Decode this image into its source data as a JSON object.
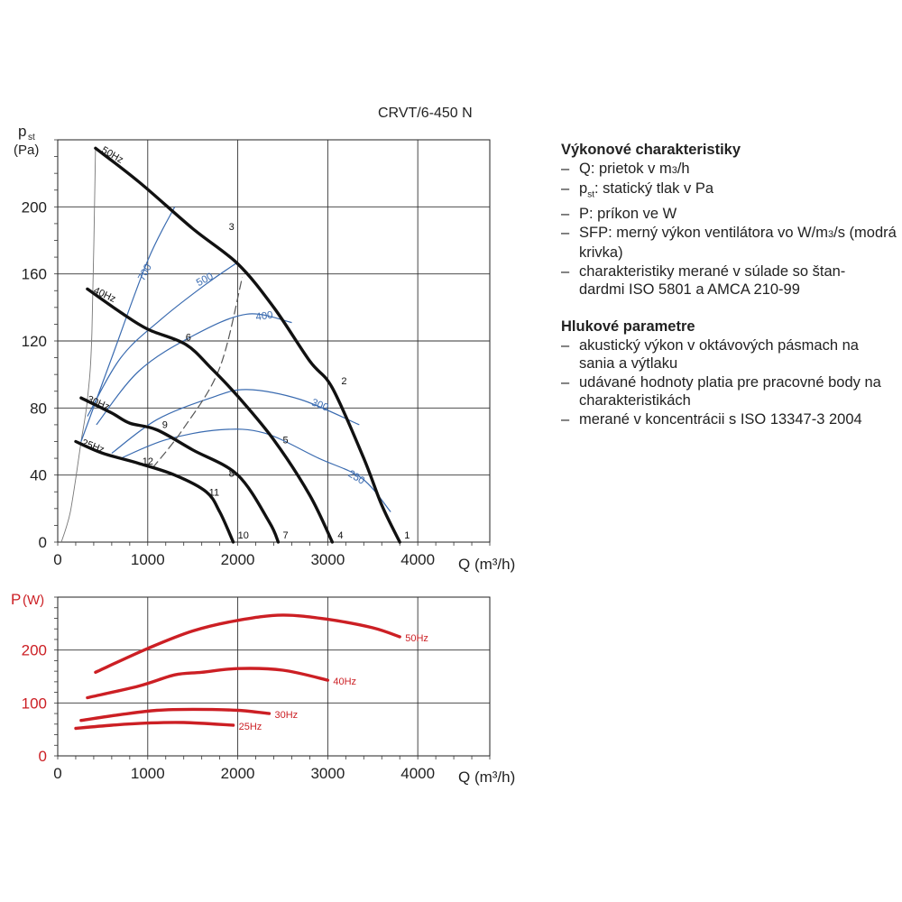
{
  "model": "CRVT/6-450 N",
  "notes": [
    {
      "heading": "Výkonové charakteristiky",
      "items": [
        "Q: prietok v m³/h",
        "pst: statický tlak v Pa",
        "P: príkon ve W",
        "SFP: merný výkon ventilátora vo W/m³/s (modrá krivka)",
        "charakteristiky merané v súlade so štandardmi ISO 5801 a AMCA 210-99"
      ]
    },
    {
      "heading": "Hlukové parametre",
      "items": [
        "akustický výkon v oktávových pásmach na sania a výtlaku",
        "udávané hodnoty platia pre pracovné body na charakteristikách",
        "merané v koncentrácii s ISO 13347-3 2004"
      ]
    }
  ],
  "chart_data": [
    {
      "type": "line",
      "xlabel": "Q (m³/h)",
      "ylabel_main": "p",
      "ylabel_sub": "st",
      "ylabel_unit": "(Pa)",
      "xlim": [
        0,
        4800
      ],
      "ylim": [
        0,
        240
      ],
      "xticks": [
        0,
        1000,
        2000,
        3000,
        4000
      ],
      "yticks": [
        0,
        40,
        80,
        120,
        160,
        200
      ],
      "grid": true,
      "series": [
        {
          "name": "50Hz",
          "color": "#111111",
          "points": [
            [
              420,
              235
            ],
            [
              900,
              215
            ],
            [
              1500,
              187
            ],
            [
              2000,
              166
            ],
            [
              2400,
              140
            ],
            [
              2800,
              108
            ],
            [
              3050,
              92
            ],
            [
              3400,
              50
            ],
            [
              3600,
              22
            ],
            [
              3800,
              0
            ]
          ]
        },
        {
          "name": "40Hz",
          "color": "#111111",
          "points": [
            [
              330,
              151
            ],
            [
              700,
              137
            ],
            [
              1000,
              127
            ],
            [
              1420,
              118
            ],
            [
              1700,
              104
            ],
            [
              2000,
              87
            ],
            [
              2400,
              61
            ],
            [
              2800,
              28
            ],
            [
              3050,
              0
            ]
          ]
        },
        {
          "name": "30Hz",
          "color": "#111111",
          "points": [
            [
              260,
              86
            ],
            [
              600,
              77
            ],
            [
              800,
              71
            ],
            [
              1100,
              67
            ],
            [
              1500,
              55
            ],
            [
              2000,
              40
            ],
            [
              2350,
              12
            ],
            [
              2450,
              0
            ]
          ]
        },
        {
          "name": "25Hz",
          "color": "#111111",
          "points": [
            [
              200,
              60
            ],
            [
              500,
              53
            ],
            [
              900,
              47
            ],
            [
              1300,
              40
            ],
            [
              1650,
              30
            ],
            [
              1800,
              18
            ],
            [
              1950,
              0
            ]
          ]
        }
      ],
      "sfp_curves": [
        {
          "name": "700",
          "color": "#3a6bb0",
          "points": [
            [
              260,
              60
            ],
            [
              600,
              110
            ],
            [
              1000,
              168
            ],
            [
              1300,
              200
            ]
          ]
        },
        {
          "name": "500",
          "color": "#3a6bb0",
          "points": [
            [
              330,
              75
            ],
            [
              700,
              110
            ],
            [
              1150,
              133
            ],
            [
              1650,
              154
            ],
            [
              2000,
              167
            ]
          ]
        },
        {
          "name": "400",
          "color": "#3a6bb0",
          "points": [
            [
              430,
              70
            ],
            [
              900,
              102
            ],
            [
              1500,
              123
            ],
            [
              2100,
              136
            ],
            [
              2600,
              131
            ]
          ]
        },
        {
          "name": "300",
          "color": "#3a6bb0",
          "points": [
            [
              600,
              53
            ],
            [
              1100,
              73
            ],
            [
              1700,
              86
            ],
            [
              2100,
              91
            ],
            [
              2700,
              85
            ],
            [
              3350,
              70
            ]
          ]
        },
        {
          "name": "250",
          "color": "#3a6bb0",
          "points": [
            [
              700,
              50
            ],
            [
              1200,
              61
            ],
            [
              1800,
              67
            ],
            [
              2300,
              65
            ],
            [
              2900,
              50
            ],
            [
              3380,
              38
            ],
            [
              3700,
              18
            ]
          ]
        }
      ],
      "system_curve": {
        "color": "#555555",
        "points": [
          [
            1050,
            44
          ],
          [
            1400,
            68
          ],
          [
            1800,
            104
          ],
          [
            2050,
            158
          ]
        ]
      },
      "limit_curve": {
        "color": "#777777",
        "points": [
          [
            40,
            0
          ],
          [
            90,
            8
          ],
          [
            140,
            18
          ],
          [
            200,
            38
          ],
          [
            260,
            60
          ],
          [
            330,
            85
          ],
          [
            380,
            125
          ],
          [
            420,
            235
          ]
        ]
      },
      "operating_points": [
        {
          "label": "1",
          "q": 3800,
          "p": 0
        },
        {
          "label": "2",
          "q": 3050,
          "p": 92
        },
        {
          "label": "3",
          "q": 1800,
          "p": 184
        },
        {
          "label": "4",
          "q": 3050,
          "p": 0
        },
        {
          "label": "5",
          "q": 2400,
          "p": 61
        },
        {
          "label": "6",
          "q": 1420,
          "p": 118
        },
        {
          "label": "7",
          "q": 2450,
          "p": 0
        },
        {
          "label": "8",
          "q": 1800,
          "p": 40
        },
        {
          "label": "9",
          "q": 1100,
          "p": 67
        },
        {
          "label": "10",
          "q": 1950,
          "p": 0
        },
        {
          "label": "11",
          "q": 1650,
          "p": 30
        },
        {
          "label": "12",
          "q": 1020,
          "p": 44
        }
      ]
    },
    {
      "type": "line",
      "xlabel": "Q (m³/h)",
      "ylabel_main": "P",
      "ylabel_unit": "(W)",
      "xlim": [
        0,
        4800
      ],
      "ylim": [
        0,
        300
      ],
      "xticks": [
        0,
        1000,
        2000,
        3000,
        4000
      ],
      "yticks": [
        0,
        100,
        200
      ],
      "grid": true,
      "series": [
        {
          "name": "50Hz",
          "color": "#cc1f24",
          "points": [
            [
              420,
              158
            ],
            [
              1000,
              203
            ],
            [
              1500,
              236
            ],
            [
              2000,
              256
            ],
            [
              2500,
              266
            ],
            [
              3000,
              258
            ],
            [
              3500,
              242
            ],
            [
              3800,
              225
            ]
          ]
        },
        {
          "name": "40Hz",
          "color": "#cc1f24",
          "points": [
            [
              330,
              110
            ],
            [
              900,
              132
            ],
            [
              1300,
              153
            ],
            [
              1600,
              158
            ],
            [
              2000,
              165
            ],
            [
              2500,
              162
            ],
            [
              3000,
              143
            ]
          ]
        },
        {
          "name": "30Hz",
          "color": "#cc1f24",
          "points": [
            [
              260,
              67
            ],
            [
              700,
              78
            ],
            [
              1100,
              86
            ],
            [
              1500,
              88
            ],
            [
              2000,
              86
            ],
            [
              2350,
              80
            ]
          ]
        },
        {
          "name": "25Hz",
          "color": "#cc1f24",
          "points": [
            [
              200,
              52
            ],
            [
              600,
              58
            ],
            [
              1000,
              62
            ],
            [
              1400,
              63
            ],
            [
              1950,
              58
            ]
          ]
        }
      ]
    }
  ]
}
